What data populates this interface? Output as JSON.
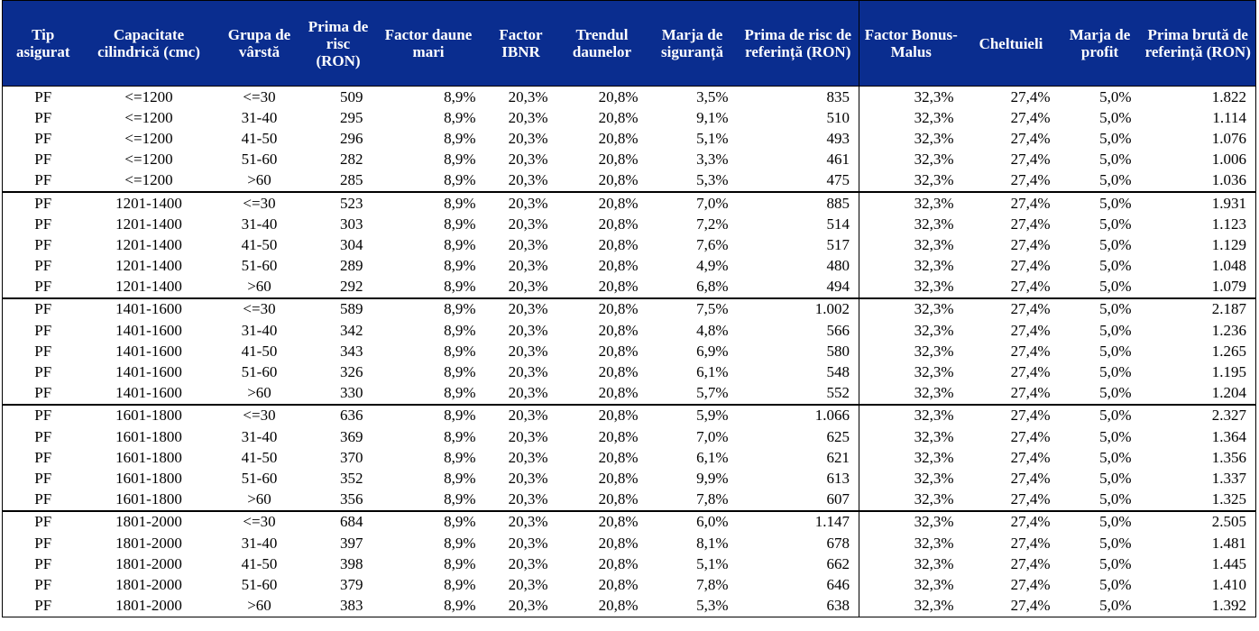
{
  "table": {
    "header": [
      "Tip asigurat",
      "Capacitate cilindrică (cmc)",
      "Grupa de vârstă",
      "Prima de risc (RON)",
      "Factor daune mari",
      "Factor IBNR",
      "Trendul daunelor",
      "Marja de siguranță",
      "Prima de risc de referință (RON)",
      "Factor Bonus-Malus",
      "Cheltuieli",
      "Marja de profit",
      "Prima brută de referință (RON)"
    ],
    "rows": [
      [
        "PF",
        "<=1200",
        "<=30",
        "509",
        "8,9%",
        "20,3%",
        "20,8%",
        "3,5%",
        "835",
        "32,3%",
        "27,4%",
        "5,0%",
        "1.822"
      ],
      [
        "PF",
        "<=1200",
        "31-40",
        "295",
        "8,9%",
        "20,3%",
        "20,8%",
        "9,1%",
        "510",
        "32,3%",
        "27,4%",
        "5,0%",
        "1.114"
      ],
      [
        "PF",
        "<=1200",
        "41-50",
        "296",
        "8,9%",
        "20,3%",
        "20,8%",
        "5,1%",
        "493",
        "32,3%",
        "27,4%",
        "5,0%",
        "1.076"
      ],
      [
        "PF",
        "<=1200",
        "51-60",
        "282",
        "8,9%",
        "20,3%",
        "20,8%",
        "3,3%",
        "461",
        "32,3%",
        "27,4%",
        "5,0%",
        "1.006"
      ],
      [
        "PF",
        "<=1200",
        ">60",
        "285",
        "8,9%",
        "20,3%",
        "20,8%",
        "5,3%",
        "475",
        "32,3%",
        "27,4%",
        "5,0%",
        "1.036"
      ],
      [
        "PF",
        "1201-1400",
        "<=30",
        "523",
        "8,9%",
        "20,3%",
        "20,8%",
        "7,0%",
        "885",
        "32,3%",
        "27,4%",
        "5,0%",
        "1.931"
      ],
      [
        "PF",
        "1201-1400",
        "31-40",
        "303",
        "8,9%",
        "20,3%",
        "20,8%",
        "7,2%",
        "514",
        "32,3%",
        "27,4%",
        "5,0%",
        "1.123"
      ],
      [
        "PF",
        "1201-1400",
        "41-50",
        "304",
        "8,9%",
        "20,3%",
        "20,8%",
        "7,6%",
        "517",
        "32,3%",
        "27,4%",
        "5,0%",
        "1.129"
      ],
      [
        "PF",
        "1201-1400",
        "51-60",
        "289",
        "8,9%",
        "20,3%",
        "20,8%",
        "4,9%",
        "480",
        "32,3%",
        "27,4%",
        "5,0%",
        "1.048"
      ],
      [
        "PF",
        "1201-1400",
        ">60",
        "292",
        "8,9%",
        "20,3%",
        "20,8%",
        "6,8%",
        "494",
        "32,3%",
        "27,4%",
        "5,0%",
        "1.079"
      ],
      [
        "PF",
        "1401-1600",
        "<=30",
        "589",
        "8,9%",
        "20,3%",
        "20,8%",
        "7,5%",
        "1.002",
        "32,3%",
        "27,4%",
        "5,0%",
        "2.187"
      ],
      [
        "PF",
        "1401-1600",
        "31-40",
        "342",
        "8,9%",
        "20,3%",
        "20,8%",
        "4,8%",
        "566",
        "32,3%",
        "27,4%",
        "5,0%",
        "1.236"
      ],
      [
        "PF",
        "1401-1600",
        "41-50",
        "343",
        "8,9%",
        "20,3%",
        "20,8%",
        "6,9%",
        "580",
        "32,3%",
        "27,4%",
        "5,0%",
        "1.265"
      ],
      [
        "PF",
        "1401-1600",
        "51-60",
        "326",
        "8,9%",
        "20,3%",
        "20,8%",
        "6,1%",
        "548",
        "32,3%",
        "27,4%",
        "5,0%",
        "1.195"
      ],
      [
        "PF",
        "1401-1600",
        ">60",
        "330",
        "8,9%",
        "20,3%",
        "20,8%",
        "5,7%",
        "552",
        "32,3%",
        "27,4%",
        "5,0%",
        "1.204"
      ],
      [
        "PF",
        "1601-1800",
        "<=30",
        "636",
        "8,9%",
        "20,3%",
        "20,8%",
        "5,9%",
        "1.066",
        "32,3%",
        "27,4%",
        "5,0%",
        "2.327"
      ],
      [
        "PF",
        "1601-1800",
        "31-40",
        "369",
        "8,9%",
        "20,3%",
        "20,8%",
        "7,0%",
        "625",
        "32,3%",
        "27,4%",
        "5,0%",
        "1.364"
      ],
      [
        "PF",
        "1601-1800",
        "41-50",
        "370",
        "8,9%",
        "20,3%",
        "20,8%",
        "6,1%",
        "621",
        "32,3%",
        "27,4%",
        "5,0%",
        "1.356"
      ],
      [
        "PF",
        "1601-1800",
        "51-60",
        "352",
        "8,9%",
        "20,3%",
        "20,8%",
        "9,9%",
        "613",
        "32,3%",
        "27,4%",
        "5,0%",
        "1.337"
      ],
      [
        "PF",
        "1601-1800",
        ">60",
        "356",
        "8,9%",
        "20,3%",
        "20,8%",
        "7,8%",
        "607",
        "32,3%",
        "27,4%",
        "5,0%",
        "1.325"
      ],
      [
        "PF",
        "1801-2000",
        "<=30",
        "684",
        "8,9%",
        "20,3%",
        "20,8%",
        "6,0%",
        "1.147",
        "32,3%",
        "27,4%",
        "5,0%",
        "2.505"
      ],
      [
        "PF",
        "1801-2000",
        "31-40",
        "397",
        "8,9%",
        "20,3%",
        "20,8%",
        "8,1%",
        "678",
        "32,3%",
        "27,4%",
        "5,0%",
        "1.481"
      ],
      [
        "PF",
        "1801-2000",
        "41-50",
        "398",
        "8,9%",
        "20,3%",
        "20,8%",
        "5,1%",
        "662",
        "32,3%",
        "27,4%",
        "5,0%",
        "1.445"
      ],
      [
        "PF",
        "1801-2000",
        "51-60",
        "379",
        "8,9%",
        "20,3%",
        "20,8%",
        "7,8%",
        "646",
        "32,3%",
        "27,4%",
        "5,0%",
        "1.410"
      ],
      [
        "PF",
        "1801-2000",
        ">60",
        "383",
        "8,9%",
        "20,3%",
        "20,8%",
        "5,3%",
        "638",
        "32,3%",
        "27,4%",
        "5,0%",
        "1.392"
      ]
    ]
  }
}
